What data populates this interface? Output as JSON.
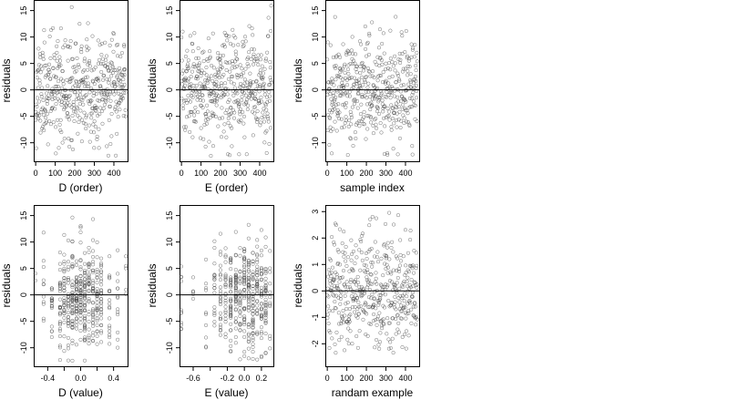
{
  "chart_data": [
    {
      "type": "scatter",
      "xlabel": "D (order)",
      "ylabel": "residuals",
      "xlim": [
        -10,
        470
      ],
      "ylim": [
        -13.5,
        17
      ],
      "xticks": [
        0,
        100,
        200,
        300,
        400
      ],
      "xtick_labels": [
        "0",
        "100",
        "200",
        "300",
        "400"
      ],
      "yticks": [
        -10,
        -5,
        0,
        5,
        10,
        15
      ],
      "ytick_labels": [
        "-10",
        "-5",
        "0",
        "5",
        "10",
        "15"
      ],
      "reference_line_y": 0,
      "grid": false,
      "n_points": 460,
      "seed": 11,
      "x_kind": "index",
      "x_min": 0,
      "x_max": 460,
      "y_sd": 5,
      "y_min": -12.5,
      "y_max": 16
    },
    {
      "type": "scatter",
      "xlabel": "E (order)",
      "ylabel": "residuals",
      "xlim": [
        -10,
        470
      ],
      "ylim": [
        -13.5,
        17
      ],
      "xticks": [
        0,
        100,
        200,
        300,
        400
      ],
      "xtick_labels": [
        "0",
        "100",
        "200",
        "300",
        "400"
      ],
      "yticks": [
        -10,
        -5,
        0,
        5,
        10,
        15
      ],
      "ytick_labels": [
        "-10",
        "-5",
        "0",
        "5",
        "10",
        "15"
      ],
      "reference_line_y": 0,
      "grid": false,
      "n_points": 460,
      "seed": 23,
      "x_kind": "index",
      "x_min": 0,
      "x_max": 460,
      "y_sd": 5,
      "y_min": -12.5,
      "y_max": 16
    },
    {
      "type": "scatter",
      "xlabel": "sample index",
      "ylabel": "residuals",
      "xlim": [
        -10,
        470
      ],
      "ylim": [
        -13.5,
        17
      ],
      "xticks": [
        0,
        100,
        200,
        300,
        400
      ],
      "xtick_labels": [
        "0",
        "100",
        "200",
        "300",
        "400"
      ],
      "yticks": [
        -10,
        -5,
        0,
        5,
        10,
        15
      ],
      "ytick_labels": [
        "-10",
        "-5",
        "0",
        "5",
        "10",
        "15"
      ],
      "reference_line_y": 0,
      "grid": false,
      "n_points": 460,
      "seed": 37,
      "x_kind": "index",
      "x_min": 0,
      "x_max": 460,
      "y_sd": 5,
      "y_min": -12.5,
      "y_max": 16
    },
    {
      "type": "scatter",
      "xlabel": "D (value)",
      "ylabel": "residuals",
      "xlim": [
        -0.57,
        0.57
      ],
      "ylim": [
        -13.5,
        17
      ],
      "xticks": [
        -0.4,
        0.0,
        0.4
      ],
      "xtick_labels": [
        "-0.4",
        "0.0",
        "0.4"
      ],
      "xticks_minor": [
        -0.2,
        0.2
      ],
      "yticks": [
        -10,
        -5,
        0,
        5,
        10,
        15
      ],
      "ytick_labels": [
        "-10",
        "-5",
        "0",
        "5",
        "10",
        "15"
      ],
      "reference_line_y": 0,
      "grid": false,
      "n_points": 460,
      "seed": 41,
      "x_kind": "discrete",
      "x_levels": [
        -0.55,
        -0.45,
        -0.35,
        -0.25,
        -0.2,
        -0.15,
        -0.1,
        -0.05,
        0.0,
        0.05,
        0.1,
        0.15,
        0.2,
        0.25,
        0.35,
        0.45,
        0.55
      ],
      "x_weights": [
        1,
        2,
        3,
        5,
        5,
        6,
        7,
        7,
        8,
        8,
        8,
        7,
        6,
        5,
        4,
        2,
        1
      ],
      "y_sd": 5,
      "y_min": -12.5,
      "y_max": 16
    },
    {
      "type": "scatter",
      "xlabel": "E (value)",
      "ylabel": "residuals",
      "xlim": [
        -0.76,
        0.34
      ],
      "ylim": [
        -13.5,
        17
      ],
      "xticks": [
        -0.6,
        -0.2,
        0.0,
        0.2
      ],
      "xtick_labels": [
        "-0.6",
        "-0.2",
        "0.0",
        "0.2"
      ],
      "xticks_minor": [
        -0.4
      ],
      "yticks": [
        -10,
        -5,
        0,
        5,
        10,
        15
      ],
      "ytick_labels": [
        "-10",
        "-5",
        "0",
        "5",
        "10",
        "15"
      ],
      "reference_line_y": 0,
      "grid": false,
      "n_points": 460,
      "seed": 53,
      "x_kind": "discrete",
      "x_levels": [
        -0.74,
        -0.6,
        -0.45,
        -0.35,
        -0.28,
        -0.22,
        -0.16,
        -0.1,
        -0.05,
        0.0,
        0.05,
        0.1,
        0.15,
        0.2,
        0.25,
        0.3
      ],
      "x_weights": [
        1,
        1,
        2,
        3,
        4,
        5,
        7,
        8,
        8,
        9,
        9,
        8,
        8,
        7,
        5,
        3
      ],
      "y_sd": 5,
      "y_min": -12.5,
      "y_max": 16
    },
    {
      "type": "scatter",
      "xlabel": "randam example",
      "ylabel": "residuals",
      "xlim": [
        -10,
        470
      ],
      "ylim": [
        -2.85,
        3.25
      ],
      "xticks": [
        0,
        100,
        200,
        300,
        400
      ],
      "xtick_labels": [
        "0",
        "100",
        "200",
        "300",
        "400"
      ],
      "yticks": [
        -2,
        -1,
        0,
        1,
        2,
        3
      ],
      "ytick_labels": [
        "-2",
        "-1",
        "0",
        "1",
        "2",
        "3"
      ],
      "reference_line_y": 0,
      "grid": false,
      "n_points": 460,
      "seed": 67,
      "x_kind": "index",
      "x_min": 0,
      "x_max": 460,
      "y_sd": 1,
      "y_min": -2.6,
      "y_max": 3.0
    }
  ]
}
